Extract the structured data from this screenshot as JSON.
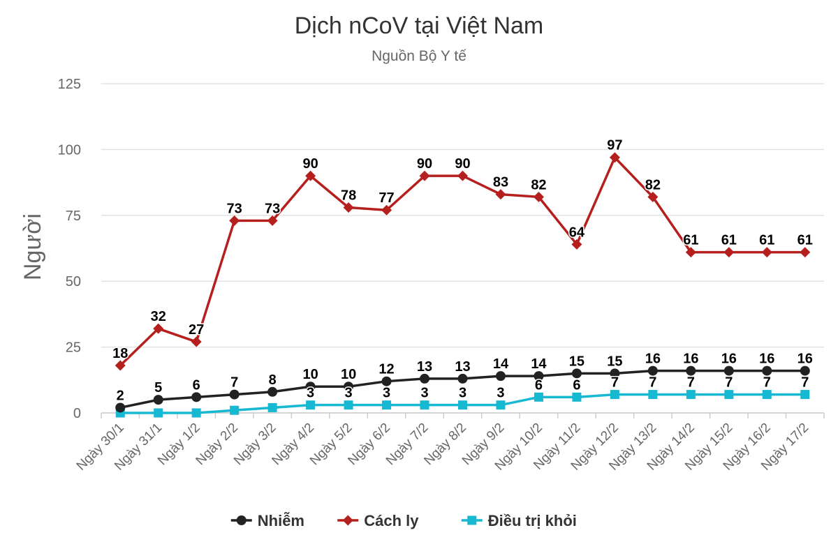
{
  "chart_data": {
    "type": "line",
    "title": "Dịch nCoV tại Việt Nam",
    "subtitle": "Nguồn Bộ Y tế",
    "ylabel": "Người",
    "xlabel": "",
    "ylim": [
      0,
      125
    ],
    "yticks": [
      0,
      25,
      50,
      75,
      100,
      125
    ],
    "grid": true,
    "legend_position": "bottom",
    "categories": [
      "Ngày 30/1",
      "Ngày 31/1",
      "Ngày 1/2",
      "Ngày 2/2",
      "Ngày 3/2",
      "Ngày 4/2",
      "Ngày 5/2",
      "Ngày 6/2",
      "Ngày 7/2",
      "Ngày 8/2",
      "Ngày 9/2",
      "Ngày 10/2",
      "Ngày 11/2",
      "Ngày 12/2",
      "Ngày 13/2",
      "Ngày 14/2",
      "Ngày 15/2",
      "Ngày 16/2",
      "Ngày 17/2"
    ],
    "series": [
      {
        "name": "Nhiễm",
        "color": "#222222",
        "marker": "circle",
        "show_labels": true,
        "values": [
          2,
          5,
          6,
          7,
          8,
          10,
          10,
          12,
          13,
          13,
          14,
          14,
          15,
          15,
          16,
          16,
          16,
          16,
          16
        ]
      },
      {
        "name": "Cách ly",
        "color": "#b5201e",
        "marker": "diamond",
        "show_labels": true,
        "values": [
          18,
          32,
          27,
          73,
          73,
          90,
          78,
          77,
          90,
          90,
          83,
          82,
          64,
          97,
          82,
          61,
          61,
          61,
          61
        ]
      },
      {
        "name": "Điều trị khỏi",
        "color": "#16b8d2",
        "marker": "square",
        "show_labels": true,
        "label_from_index": 5,
        "values": [
          0,
          0,
          0,
          1,
          2,
          3,
          3,
          3,
          3,
          3,
          3,
          6,
          6,
          7,
          7,
          7,
          7,
          7,
          7
        ]
      }
    ]
  }
}
